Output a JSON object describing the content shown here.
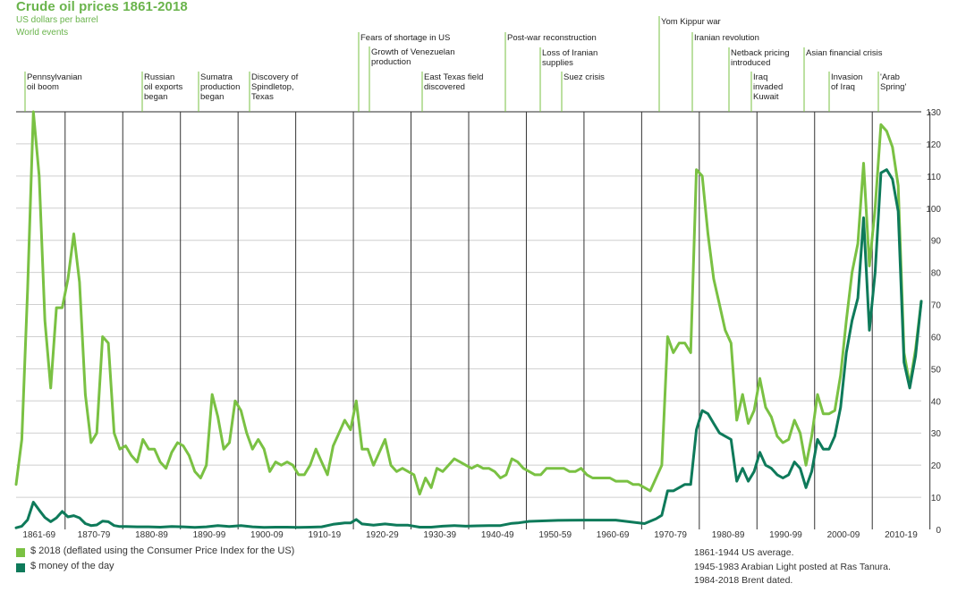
{
  "chart_data": {
    "type": "line",
    "title": "Crude oil prices 1861-2018",
    "subtitle": "US dollars per barrel",
    "events_label": "World events",
    "x_tick_labels": [
      "1861-69",
      "1870-79",
      "1880-89",
      "1890-99",
      "1900-09",
      "1910-19",
      "1920-29",
      "1930-39",
      "1940-49",
      "1950-59",
      "1960-69",
      "1970-79",
      "1980-89",
      "1990-99",
      "2000-09",
      "2010-19"
    ],
    "xlim": [
      1861,
      2018
    ],
    "ylim": [
      0,
      130
    ],
    "y_ticks": [
      0,
      10,
      20,
      30,
      40,
      50,
      60,
      70,
      80,
      90,
      100,
      110,
      120,
      130
    ],
    "grid": true,
    "legend_position": "bottom-left",
    "colors": {
      "deflated": "#7ac143",
      "nominal": "#0e7a5a",
      "title": "#6ab44c",
      "grid": "#cfcfcf"
    },
    "events": [
      {
        "year": 1861.5,
        "label": "Pennsylvanian\noil boom",
        "level": 3
      },
      {
        "year": 1875.3,
        "label": "Russian\noil exports\nbegan",
        "level": 3
      },
      {
        "year": 1881.5,
        "label": "Sumatra\nproduction\nbegan",
        "level": 3
      },
      {
        "year": 1887.0,
        "label": "Discovery of\nSpindletop,\nTexas",
        "level": 3
      },
      {
        "year": 1907.5,
        "label": "Fears of shortage in US",
        "level": 0
      },
      {
        "year": 1908.5,
        "label": "Growth of Venezuelan\nproduction",
        "level": 1
      },
      {
        "year": 1914.5,
        "label": "East Texas field\ndiscovered",
        "level": 3
      },
      {
        "year": 1923.5,
        "label": "Post-war reconstruction",
        "level": 0
      },
      {
        "year": 1927.5,
        "label": "Loss of Iranian\nsupplies",
        "level": 2
      },
      {
        "year": 1929.5,
        "label": "Suez crisis",
        "level": 3
      },
      {
        "year": 1941.2,
        "label": "Yom Kippur war",
        "level": -1
      },
      {
        "year": 1944.5,
        "label": "Iranian revolution",
        "level": 0
      },
      {
        "year": 1948.0,
        "label": "Netback pricing\nintroduced",
        "level": 1.5
      },
      {
        "year": 1950.0,
        "label": "Iraq\ninvaded\nKuwait",
        "level": 3
      },
      {
        "year": 1955.3,
        "label": "Asian financial crisis",
        "level": 1.5
      },
      {
        "year": 1957.3,
        "label": "Invasion\nof Iraq",
        "level": 3
      },
      {
        "year": 1961.3,
        "label": "'Arab\nSpring'",
        "level": 3
      }
    ],
    "series": [
      {
        "name": "$ 2018 (deflated using the Consumer Price Index for the US)",
        "x": [
          1861,
          1862,
          1863,
          1864,
          1865,
          1866,
          1867,
          1868,
          1869,
          1870,
          1871,
          1872,
          1873,
          1874,
          1875,
          1876,
          1877,
          1878,
          1879,
          1880,
          1881,
          1882,
          1883,
          1884,
          1885,
          1886,
          1887,
          1888,
          1889,
          1890,
          1891,
          1892,
          1893,
          1894,
          1895,
          1896,
          1897,
          1898,
          1899,
          1900,
          1901,
          1902,
          1903,
          1904,
          1905,
          1906,
          1907,
          1908,
          1909,
          1910,
          1911,
          1912,
          1913,
          1914,
          1915,
          1916,
          1917,
          1918,
          1919,
          1920,
          1921,
          1922,
          1923,
          1924,
          1925,
          1926,
          1927,
          1928,
          1929,
          1930,
          1931,
          1932,
          1933,
          1934,
          1935,
          1936,
          1937,
          1938,
          1939,
          1940,
          1941,
          1942,
          1943,
          1944,
          1945,
          1946,
          1947,
          1948,
          1949,
          1950,
          1951,
          1952,
          1953,
          1954,
          1955,
          1956,
          1957,
          1958,
          1959,
          1960,
          1961,
          1962,
          1963,
          1964,
          1965,
          1966,
          1967,
          1968,
          1969,
          1970,
          1971,
          1972,
          1973,
          1974,
          1975,
          1976,
          1977,
          1978,
          1979,
          1980,
          1981,
          1982,
          1983,
          1984,
          1985,
          1986,
          1987,
          1988,
          1989,
          1990,
          1991,
          1992,
          1993,
          1994,
          1995,
          1996,
          1997,
          1998,
          1999,
          2000,
          2001,
          2002,
          2003,
          2004,
          2005,
          2006,
          2007,
          2008,
          2009,
          2010,
          2011,
          2012,
          2013,
          2014,
          2015,
          2016,
          2017,
          2018
        ],
        "values": [
          14,
          28,
          75,
          130,
          110,
          65,
          44,
          69,
          69,
          78,
          92,
          77,
          42,
          27,
          30,
          60,
          58,
          30,
          25,
          26,
          23,
          21,
          28,
          25,
          25,
          21,
          19,
          24,
          27,
          26,
          23,
          18,
          16,
          20,
          42,
          35,
          25,
          27,
          40,
          37,
          30,
          25,
          28,
          25,
          18,
          21,
          20,
          21,
          20,
          17,
          17,
          20,
          25,
          21,
          17,
          26,
          30,
          34,
          31,
          40,
          25,
          25,
          20,
          24,
          28,
          20,
          18,
          19,
          18,
          17,
          11,
          16,
          13,
          19,
          18,
          20,
          22,
          21,
          20,
          19,
          20,
          19,
          19,
          18,
          16,
          17,
          22,
          21,
          19,
          18,
          17,
          17,
          19,
          19,
          19,
          19,
          18,
          18,
          19,
          17,
          16,
          16,
          16,
          16,
          15,
          15,
          15,
          14,
          14,
          13,
          12,
          16,
          20,
          60,
          55,
          58,
          58,
          55,
          112,
          110,
          92,
          78,
          70,
          62,
          58,
          34,
          42,
          33,
          37,
          47,
          38,
          35,
          29,
          27,
          28,
          34,
          30,
          20,
          29,
          42,
          36,
          36,
          37,
          48,
          65,
          80,
          89,
          114,
          82,
          100,
          126,
          124,
          119,
          107,
          55,
          45,
          56,
          71
        ]
      },
      {
        "name": "$ money of the day",
        "x": [
          1861,
          1862,
          1863,
          1864,
          1865,
          1866,
          1867,
          1868,
          1869,
          1870,
          1871,
          1872,
          1873,
          1874,
          1875,
          1876,
          1877,
          1878,
          1879,
          1880,
          1882,
          1884,
          1886,
          1888,
          1890,
          1892,
          1894,
          1896,
          1898,
          1900,
          1902,
          1904,
          1906,
          1908,
          1910,
          1912,
          1914,
          1916,
          1918,
          1919,
          1920,
          1921,
          1923,
          1925,
          1927,
          1929,
          1931,
          1933,
          1935,
          1937,
          1939,
          1941,
          1943,
          1945,
          1947,
          1948,
          1950,
          1955,
          1960,
          1965,
          1970,
          1972,
          1973,
          1974,
          1975,
          1976,
          1977,
          1978,
          1979,
          1980,
          1981,
          1982,
          1983,
          1984,
          1985,
          1986,
          1987,
          1988,
          1989,
          1990,
          1991,
          1992,
          1993,
          1994,
          1995,
          1996,
          1997,
          1998,
          1999,
          2000,
          2001,
          2002,
          2003,
          2004,
          2005,
          2006,
          2007,
          2008,
          2009,
          2010,
          2011,
          2012,
          2013,
          2014,
          2015,
          2016,
          2017,
          2018
        ],
        "values": [
          0.5,
          1,
          3,
          8.5,
          6,
          3.7,
          2.4,
          3.6,
          5.6,
          3.9,
          4.3,
          3.6,
          1.8,
          1.2,
          1.4,
          2.6,
          2.4,
          1.2,
          0.9,
          0.9,
          0.8,
          0.8,
          0.7,
          0.9,
          0.8,
          0.6,
          0.8,
          1.2,
          0.9,
          1.2,
          0.8,
          0.6,
          0.7,
          0.7,
          0.6,
          0.7,
          0.8,
          1.6,
          2.0,
          2.0,
          3.1,
          1.7,
          1.3,
          1.7,
          1.3,
          1.3,
          0.7,
          0.7,
          1.0,
          1.2,
          1.0,
          1.1,
          1.2,
          1.2,
          1.9,
          2.0,
          2.5,
          2.8,
          2.9,
          2.9,
          1.8,
          3.3,
          4.4,
          12,
          12,
          13,
          14,
          14,
          31,
          37,
          36,
          33,
          30,
          29,
          28,
          15,
          19,
          15,
          18,
          24,
          20,
          19,
          17,
          16,
          17,
          21,
          19,
          13,
          18,
          28,
          25,
          25,
          29,
          38,
          55,
          65,
          72,
          97,
          62,
          80,
          111,
          112,
          109,
          99,
          52,
          44,
          54,
          71
        ]
      }
    ],
    "notes": [
      "1861-1944 US average.",
      "1945-1983 Arabian Light posted at Ras Tanura.",
      "1984-2018 Brent dated."
    ]
  }
}
